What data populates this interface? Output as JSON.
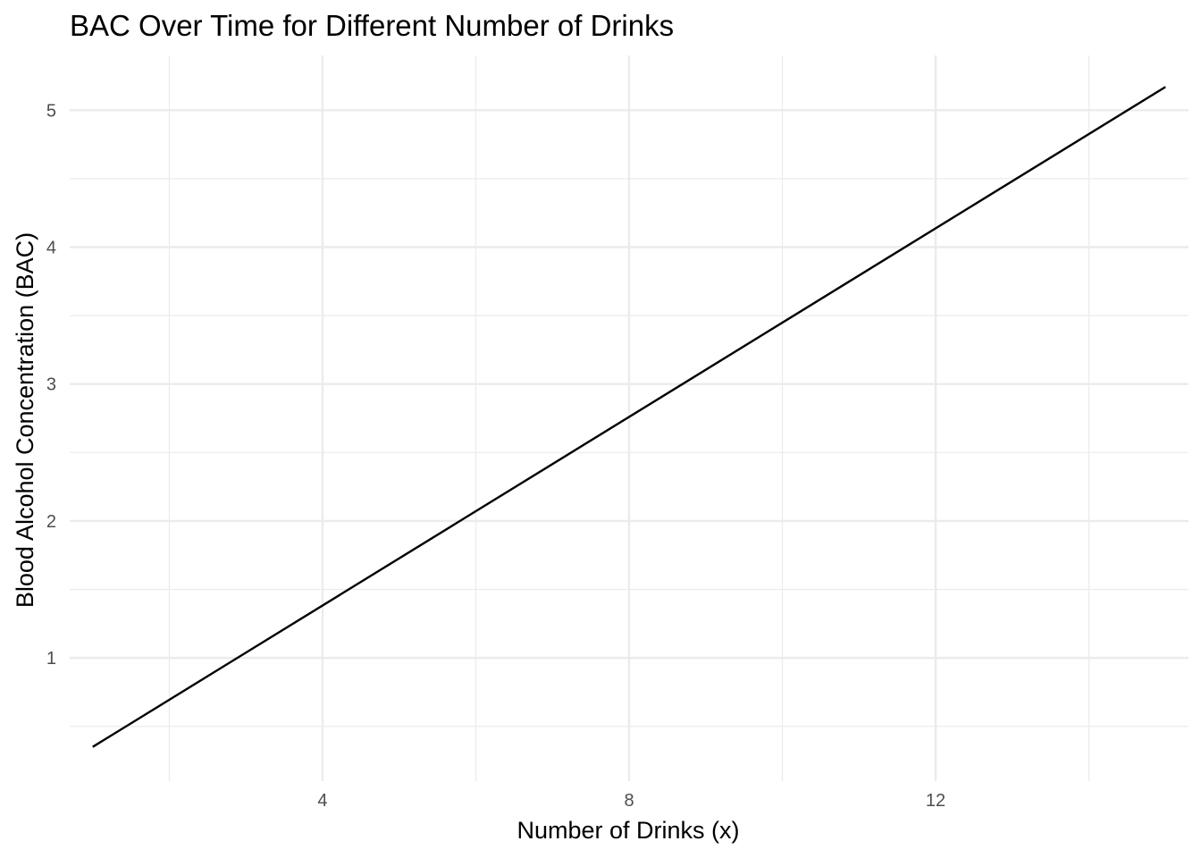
{
  "chart_data": {
    "type": "line",
    "title": "BAC Over Time for Different Number of Drinks",
    "xlabel": "Number of Drinks (x)",
    "ylabel": "Blood Alcohol Concentration (BAC)",
    "xlim": [
      0.7,
      15.3
    ],
    "ylim": [
      0.1,
      5.4
    ],
    "x_ticks": [
      4,
      8,
      12
    ],
    "x_tick_labels": [
      "4",
      "8",
      "12"
    ],
    "x_minor_ticks": [
      2,
      6,
      10,
      14
    ],
    "y_ticks": [
      1,
      2,
      3,
      4,
      5
    ],
    "y_tick_labels": [
      "1",
      "2",
      "3",
      "4",
      "5"
    ],
    "y_minor_ticks": [
      0.5,
      1.5,
      2.5,
      3.5,
      4.5
    ],
    "grid": true,
    "legend": "none",
    "series": [
      {
        "color": "#000000",
        "x": [
          1,
          15
        ],
        "y": [
          0.35,
          5.17
        ]
      }
    ]
  }
}
